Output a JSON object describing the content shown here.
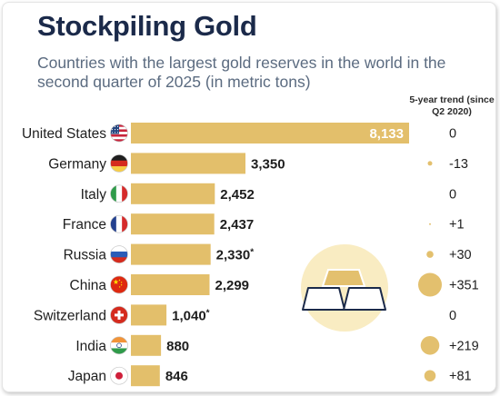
{
  "header": {
    "title": "Stockpiling Gold",
    "subtitle": "Countries with the largest gold reserves in the world in the second quarter of 2025 (in metric tons)",
    "trend_header": "5-year trend (since Q2 2020)"
  },
  "chart_data": {
    "type": "bar",
    "orientation": "horizontal",
    "title": "Stockpiling Gold",
    "subtitle": "Countries with the largest gold reserves in the world in the second quarter of 2025 (in metric tons)",
    "categories": [
      "United States",
      "Germany",
      "Italy",
      "France",
      "Russia",
      "China",
      "Switzerland",
      "India",
      "Japan"
    ],
    "values": [
      8133,
      3350,
      2452,
      2437,
      2330,
      2299,
      1040,
      880,
      846
    ],
    "value_labels": [
      "8,133",
      "3,350",
      "2,452",
      "2,437",
      "2,330",
      "2,299",
      "1,040",
      "880",
      "846"
    ],
    "value_notes": [
      "",
      "",
      "",
      "",
      "*",
      "",
      "*",
      "",
      ""
    ],
    "flags": [
      "us-flag-icon",
      "germany-flag-icon",
      "italy-flag-icon",
      "france-flag-icon",
      "russia-flag-icon",
      "china-flag-icon",
      "switzerland-flag-icon",
      "india-flag-icon",
      "japan-flag-icon"
    ],
    "trend": {
      "title": "5-year trend (since Q2 2020)",
      "values": [
        0,
        -13,
        0,
        1,
        30,
        351,
        0,
        219,
        81
      ],
      "labels": [
        "0",
        "-13",
        "0",
        "+1",
        "+30",
        "+351",
        "0",
        "+219",
        "+81"
      ]
    },
    "colors": {
      "bar": "#e3bf6b",
      "label_on_bar": "#ffffff",
      "trend_dot": "#e3c06e",
      "gold_icon_bg": "#f9ecc2",
      "gold_bar": "#e3c06e"
    },
    "decoration": "gold-bars-icon"
  }
}
